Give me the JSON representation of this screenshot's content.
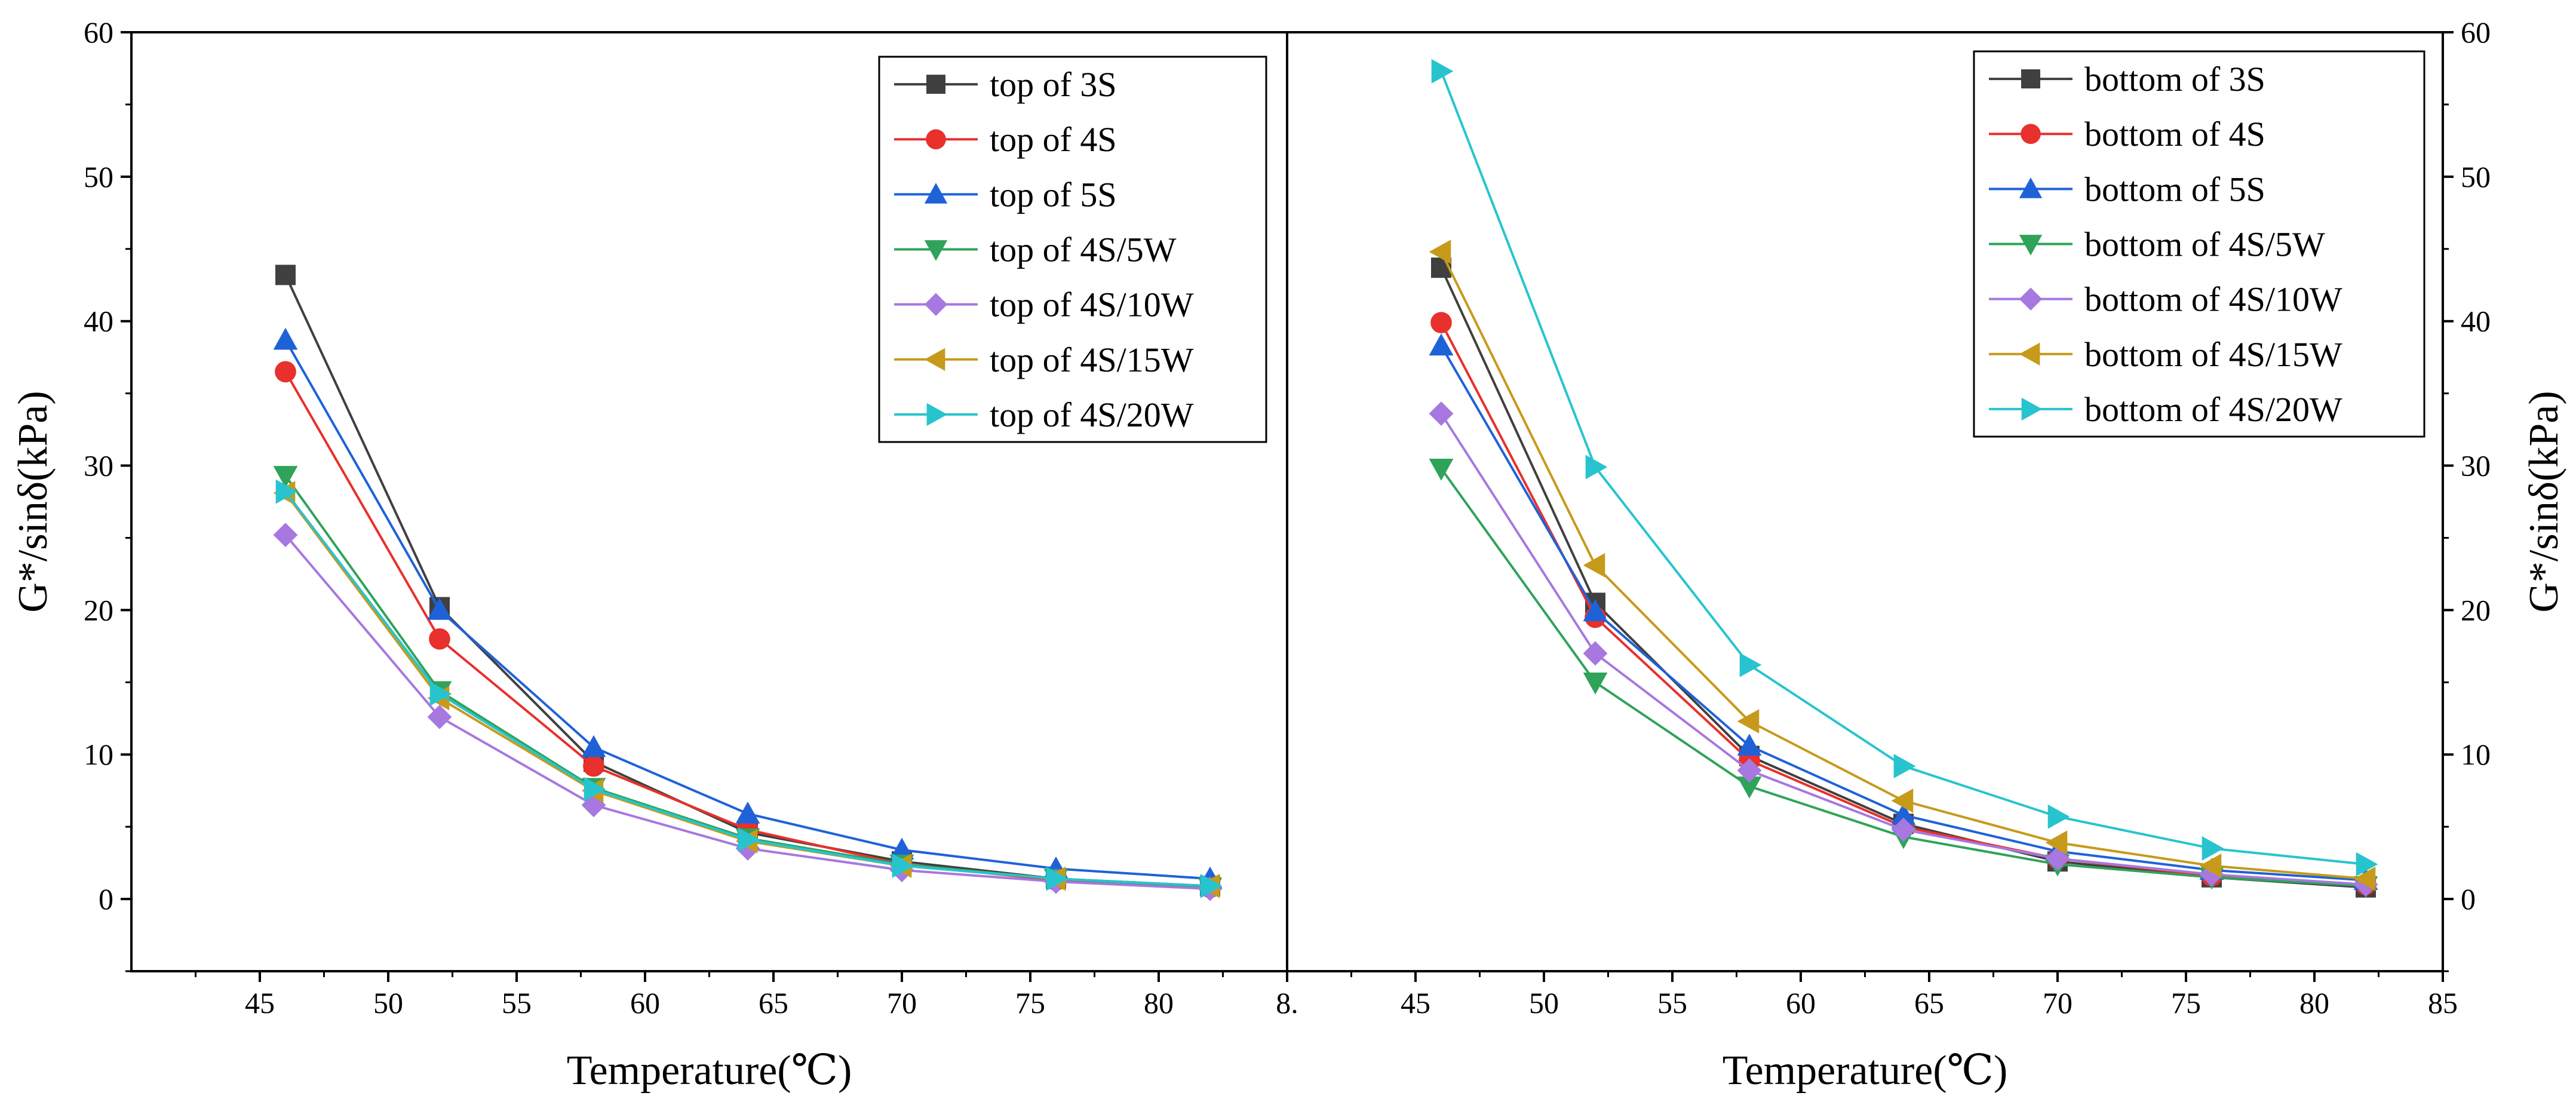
{
  "chart_data": [
    {
      "id": "left",
      "type": "line",
      "x": [
        46,
        52,
        58,
        64,
        70,
        76,
        82
      ],
      "xlim": [
        40,
        85
      ],
      "ylim": [
        -5,
        60
      ],
      "x_ticks": [
        "45",
        "50",
        "55",
        "60",
        "65",
        "70",
        "75",
        "80",
        "8."
      ],
      "y_ticks": [
        "0",
        "10",
        "20",
        "30",
        "40",
        "50",
        "60"
      ],
      "xlabel": "Temperature(℃)",
      "ylabel": "G*/sinδ(kPa)",
      "legend_position": "top-right",
      "series": [
        {
          "name": "top of 3S",
          "color": "#404040",
          "marker": "square",
          "values": [
            43.2,
            20.2,
            9.5,
            4.6,
            2.6,
            1.4,
            0.9
          ]
        },
        {
          "name": "top of 4S",
          "color": "#e8302c",
          "marker": "circle",
          "values": [
            36.5,
            18.0,
            9.2,
            4.8,
            2.4,
            1.3,
            0.8
          ]
        },
        {
          "name": "top of 5S",
          "color": "#1f62d8",
          "marker": "triangle-up",
          "values": [
            38.7,
            20.0,
            10.5,
            5.9,
            3.4,
            2.1,
            1.4
          ]
        },
        {
          "name": "top of 4S/5W",
          "color": "#2fa35a",
          "marker": "triangle-down",
          "values": [
            29.3,
            14.4,
            7.7,
            4.2,
            2.4,
            1.4,
            0.8
          ]
        },
        {
          "name": "top of 4S/10W",
          "color": "#a678e0",
          "marker": "diamond",
          "values": [
            25.2,
            12.6,
            6.5,
            3.5,
            2.0,
            1.2,
            0.7
          ]
        },
        {
          "name": "top of 4S/15W",
          "color": "#c79a1b",
          "marker": "triangle-left",
          "values": [
            28.1,
            13.9,
            7.5,
            4.0,
            2.3,
            1.4,
            0.9
          ]
        },
        {
          "name": "top of 4S/20W",
          "color": "#27c4cf",
          "marker": "triangle-right",
          "values": [
            28.2,
            14.2,
            7.6,
            4.1,
            2.3,
            1.4,
            0.9
          ]
        }
      ]
    },
    {
      "id": "right",
      "type": "line",
      "x": [
        46,
        52,
        58,
        64,
        70,
        76,
        82
      ],
      "xlim": [
        40,
        85
      ],
      "ylim": [
        -5,
        60
      ],
      "x_ticks": [
        "45",
        "50",
        "55",
        "60",
        "65",
        "70",
        "75",
        "80",
        "85"
      ],
      "y_ticks": [
        "0",
        "10",
        "20",
        "30",
        "40",
        "50",
        "60"
      ],
      "xlabel": "Temperature(℃)",
      "ylabel": "G*/sinδ(kPa)",
      "legend_position": "top-right",
      "series": [
        {
          "name": "bottom of 3S",
          "color": "#404040",
          "marker": "square",
          "values": [
            43.7,
            20.5,
            9.9,
            5.2,
            2.6,
            1.5,
            0.8
          ]
        },
        {
          "name": "bottom of 4S",
          "color": "#e8302c",
          "marker": "circle",
          "values": [
            39.9,
            19.5,
            9.6,
            5.0,
            2.8,
            1.6,
            1.0
          ]
        },
        {
          "name": "bottom of 5S",
          "color": "#1f62d8",
          "marker": "triangle-up",
          "values": [
            38.3,
            19.9,
            10.6,
            5.8,
            3.3,
            2.0,
            1.3
          ]
        },
        {
          "name": "bottom of 4S/5W",
          "color": "#2fa35a",
          "marker": "triangle-down",
          "values": [
            29.8,
            15.0,
            7.8,
            4.3,
            2.4,
            1.5,
            0.9
          ]
        },
        {
          "name": "bottom of 4S/10W",
          "color": "#a678e0",
          "marker": "diamond",
          "values": [
            33.6,
            17.0,
            8.9,
            4.8,
            2.8,
            1.7,
            1.0
          ]
        },
        {
          "name": "bottom of 4S/15W",
          "color": "#c79a1b",
          "marker": "triangle-left",
          "values": [
            44.8,
            23.1,
            12.3,
            6.8,
            3.9,
            2.3,
            1.4
          ]
        },
        {
          "name": "bottom of 4S/20W",
          "color": "#27c4cf",
          "marker": "triangle-right",
          "values": [
            57.3,
            29.9,
            16.2,
            9.2,
            5.7,
            3.5,
            2.4
          ]
        }
      ]
    }
  ]
}
